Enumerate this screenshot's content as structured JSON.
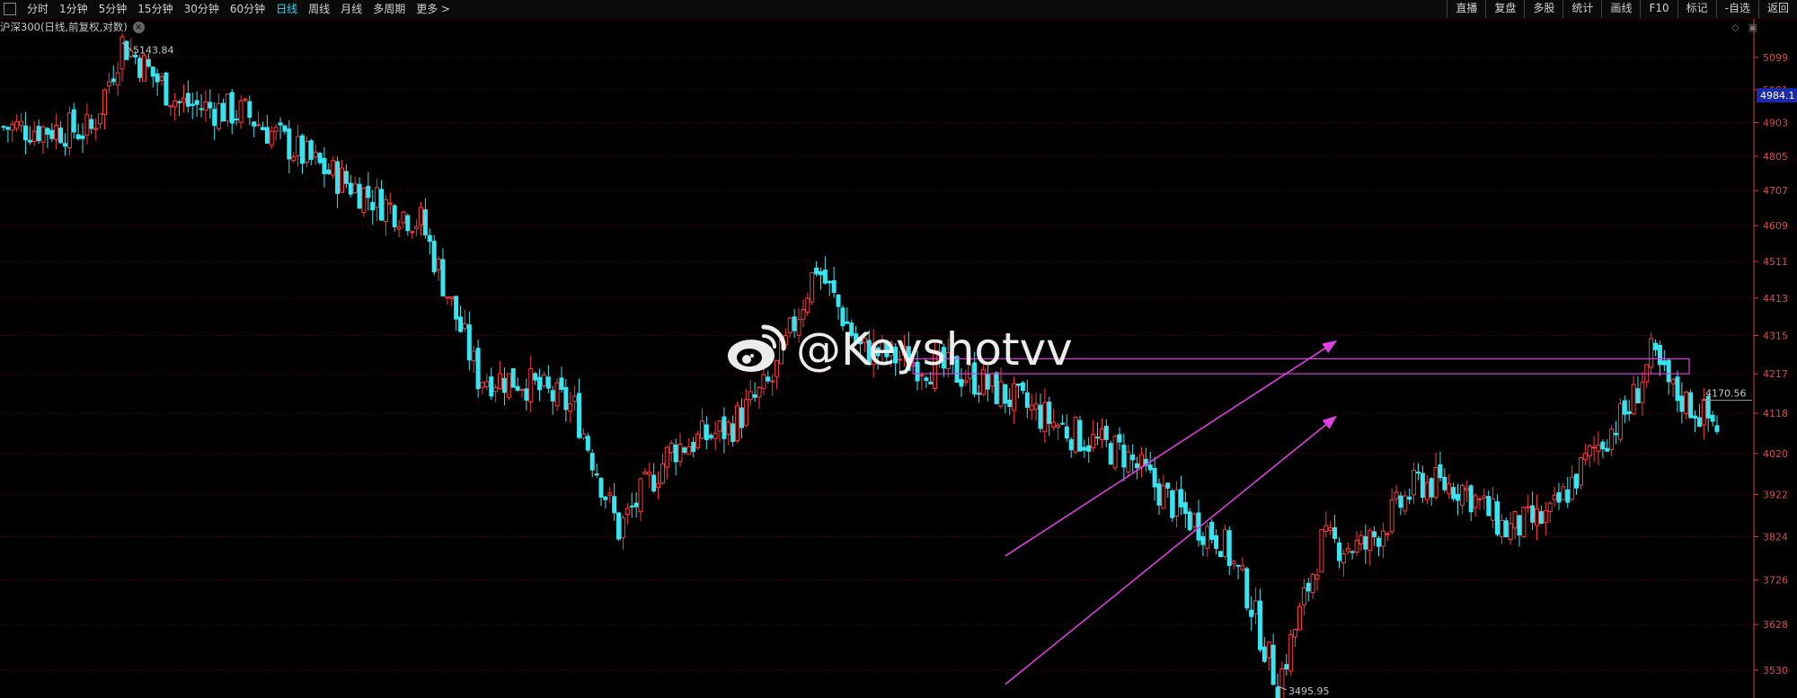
{
  "toolbar": {
    "periods": [
      {
        "label": "分时"
      },
      {
        "label": "1分钟"
      },
      {
        "label": "5分钟"
      },
      {
        "label": "15分钟"
      },
      {
        "label": "30分钟"
      },
      {
        "label": "60分钟"
      },
      {
        "label": "日线",
        "active": true
      },
      {
        "label": "周线"
      },
      {
        "label": "月线"
      },
      {
        "label": "多周期"
      },
      {
        "label": "更多 >"
      }
    ],
    "actions": [
      {
        "label": "直播"
      },
      {
        "label": "复盘"
      },
      {
        "label": "多股"
      },
      {
        "label": "统计"
      },
      {
        "label": "画线"
      },
      {
        "label": "F10"
      },
      {
        "label": "标记"
      },
      {
        "label": "-自选"
      },
      {
        "label": "返回"
      }
    ]
  },
  "chart_title": "沪深300(日线,前复权,对数)",
  "watermark": "@Keyshotvv",
  "colors": {
    "up": "#ff3b3b",
    "down": "#35e6f2",
    "grid": "#3a0000",
    "axis": "#d04040",
    "trendline": "#e040e0"
  },
  "chart_data": {
    "type": "candlestick",
    "scale": "log",
    "y_ticks": [
      5099,
      5001,
      4903,
      4805,
      4707,
      4609,
      4511,
      4413,
      4315,
      4217,
      4118,
      4020,
      3922,
      3824,
      3726,
      3628,
      3530
    ],
    "ylim": [
      3495.95,
      5143.84
    ],
    "annotations": {
      "high_label": "5143.84",
      "low_label": "3495.95",
      "current_price": "4984.1",
      "last_price": "4170.56"
    },
    "shapes": {
      "resistance_zone": [
        4217,
        4255
      ],
      "channel": [
        {
          "from": [
            200,
            3780
          ],
          "to": [
            266,
            4300
          ]
        },
        {
          "from": [
            200,
            3500
          ],
          "to": [
            266,
            4110
          ]
        }
      ]
    },
    "series_shape": [
      [
        0,
        4890
      ],
      [
        20,
        4880
      ],
      [
        27,
        5143.84
      ],
      [
        40,
        4960
      ],
      [
        55,
        4930
      ],
      [
        70,
        4790
      ],
      [
        85,
        4680
      ],
      [
        95,
        4620
      ],
      [
        108,
        4210
      ],
      [
        118,
        4200
      ],
      [
        130,
        4130
      ],
      [
        140,
        3840
      ],
      [
        152,
        4030
      ],
      [
        165,
        4080
      ],
      [
        175,
        4200
      ],
      [
        185,
        4500
      ],
      [
        195,
        4280
      ],
      [
        210,
        4240
      ],
      [
        220,
        4210
      ],
      [
        235,
        4120
      ],
      [
        245,
        4060
      ],
      [
        255,
        4020
      ],
      [
        268,
        3880
      ],
      [
        277,
        3820
      ],
      [
        283,
        3700
      ],
      [
        290,
        3495.95
      ],
      [
        300,
        3810
      ],
      [
        310,
        3800
      ],
      [
        322,
        3950
      ],
      [
        332,
        3940
      ],
      [
        342,
        3840
      ],
      [
        352,
        3870
      ],
      [
        362,
        4030
      ],
      [
        370,
        4130
      ],
      [
        375,
        4260
      ],
      [
        380,
        4170
      ],
      [
        390,
        4090
      ]
    ]
  }
}
